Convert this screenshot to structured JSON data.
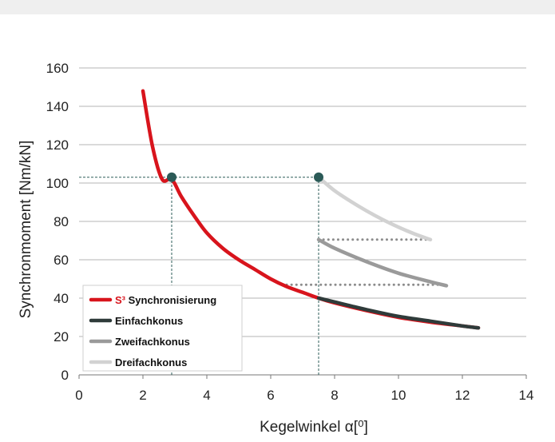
{
  "chart_data": {
    "type": "line",
    "xlabel": "Kegelwinkel α[⁰]",
    "ylabel": "Synchronmoment  [Nm/kN]",
    "xlim": [
      0,
      14
    ],
    "ylim": [
      0,
      160
    ],
    "xticks": [
      "0",
      "2",
      "4",
      "6",
      "8",
      "10",
      "12",
      "14"
    ],
    "yticks": [
      "0",
      "20",
      "40",
      "60",
      "80",
      "100",
      "120",
      "140",
      "160"
    ],
    "grid": "horizontal",
    "legend_placement": "lower-left",
    "colors": {
      "s3": "#d8141c",
      "einfach": "#2f3b3a",
      "zweifach": "#9a9a9a",
      "dreifach": "#d2d2d2",
      "marker": "#2b5a57",
      "guide": "#2e5e5a",
      "dotted": "#8c8c8c"
    },
    "series": [
      {
        "name": "Synchronisierung",
        "name_prefix": "S³",
        "color_key": "s3",
        "x": [
          2,
          2.3,
          2.6,
          2.9,
          3.2,
          3.6,
          4.0,
          4.5,
          5.0,
          5.5,
          6.0,
          6.5,
          7.0,
          7.5,
          8.0,
          9.0,
          10.0,
          11.0,
          12.0,
          12.5
        ],
        "y": [
          148,
          119,
          102,
          102,
          93,
          83,
          74,
          66,
          60,
          55,
          50,
          46,
          43,
          40,
          37.5,
          33.5,
          30,
          27.5,
          25.5,
          24.5
        ]
      },
      {
        "name": "Einfachkonus",
        "color_key": "einfach",
        "x": [
          7.5,
          8.0,
          9.0,
          10.0,
          11.0,
          12.0,
          12.5
        ],
        "y": [
          40,
          38,
          34,
          30.5,
          28,
          25.5,
          24.5
        ]
      },
      {
        "name": "Zweifachkonus",
        "color_key": "zweifach",
        "x": [
          7.5,
          8.0,
          9.0,
          10.0,
          11.0,
          11.5
        ],
        "y": [
          70.5,
          66,
          59,
          53,
          48.5,
          46.5
        ]
      },
      {
        "name": "Dreifachkonus",
        "color_key": "dreifach",
        "x": [
          7.5,
          8.0,
          8.5,
          9.0,
          9.5,
          10.0,
          10.5,
          11.0
        ],
        "y": [
          103,
          96,
          90.5,
          85.5,
          81,
          77,
          73.5,
          70.5
        ]
      }
    ],
    "markers": [
      {
        "x": 2.9,
        "y": 103
      },
      {
        "x": 7.5,
        "y": 103
      }
    ],
    "guides": [
      {
        "type": "h",
        "y": 103,
        "x0": 0,
        "x1": 7.5
      },
      {
        "type": "v",
        "x": 2.9,
        "y0": 0,
        "y1": 103
      },
      {
        "type": "v",
        "x": 7.5,
        "y0": 0,
        "y1": 103
      }
    ],
    "dotted_lines": [
      {
        "y": 70.5,
        "x0": 7.5,
        "x1": 11.0
      },
      {
        "y": 47,
        "x0": 6.5,
        "x1": 11.5
      }
    ]
  }
}
